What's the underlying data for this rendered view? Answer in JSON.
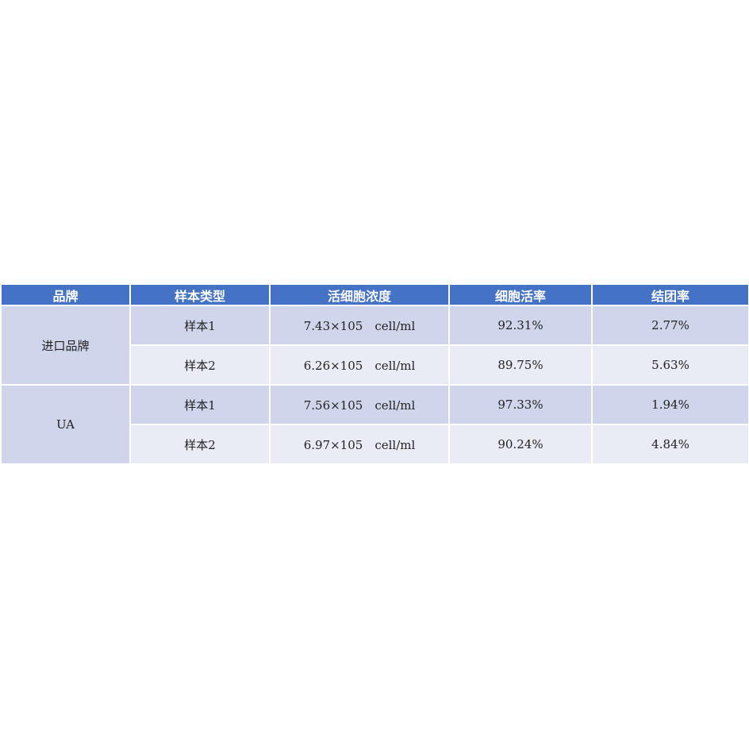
{
  "headers": [
    "品牌",
    "样本类型",
    "活细胞浓度",
    "细胞活率",
    "结团率"
  ],
  "colors": {
    "header": "#4472C4",
    "row_dark": "#CFD5EA",
    "row_light": "#E9EBF5"
  },
  "groups": [
    {
      "brand": "进口品牌",
      "rows": [
        {
          "sample": "样本1",
          "concentration": "7.43×105　cell/ml",
          "viability": "92.31%",
          "aggregation": "2.77%"
        },
        {
          "sample": "样本2",
          "concentration": "6.26×105　cell/ml",
          "viability": "89.75%",
          "aggregation": "5.63%"
        }
      ]
    },
    {
      "brand": "UA",
      "rows": [
        {
          "sample": "样本1",
          "concentration": "7.56×105　cell/ml",
          "viability": "97.33%",
          "aggregation": "1.94%"
        },
        {
          "sample": "样本2",
          "concentration": "6.97×105　cell/ml",
          "viability": "90.24%",
          "aggregation": "4.84%"
        }
      ]
    }
  ]
}
